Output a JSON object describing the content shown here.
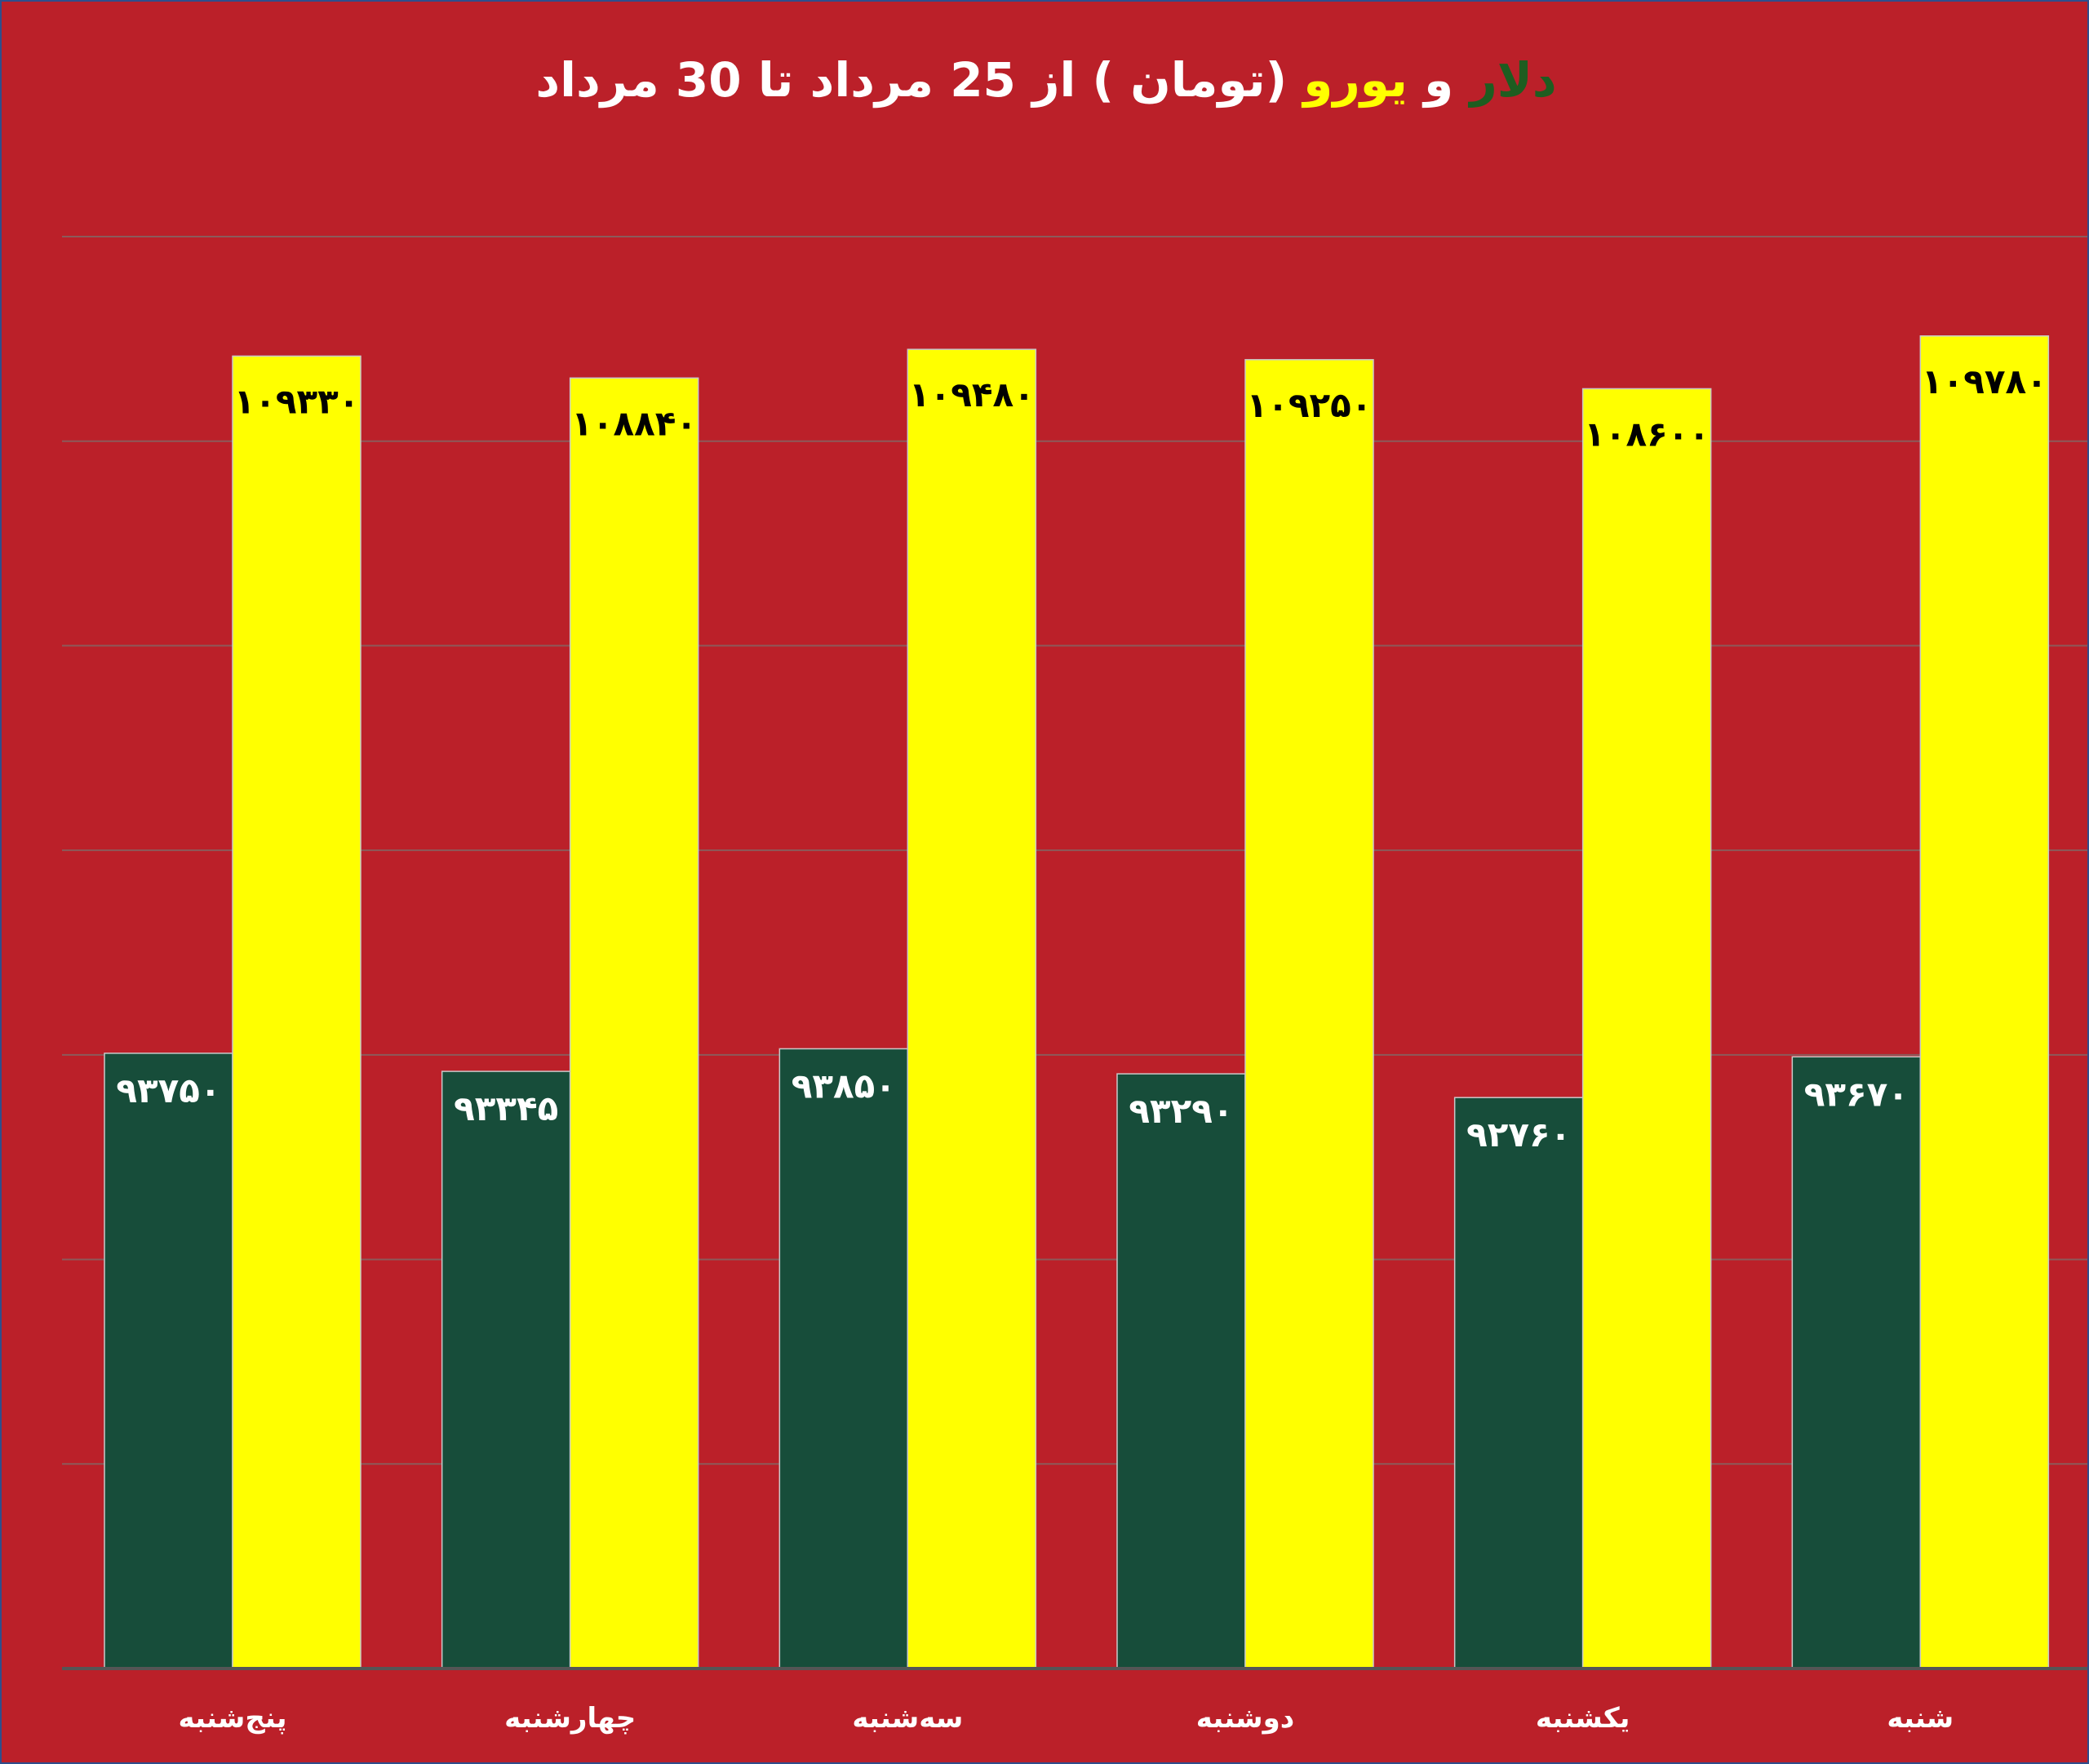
{
  "title": {
    "dollar": "دلار",
    "and": " و ",
    "euro": "یورو",
    "rest": " (تومان ) از 25 مرداد تا 30 مرداد"
  },
  "colors": {
    "background": "#bb2029",
    "dollar": "#174d3a",
    "euro": "#ffff00",
    "gridline": "#8c5a5a",
    "axis": "#555555"
  },
  "chart_data": {
    "type": "bar",
    "categories": [
      "پنج‌شنبه",
      "چهارشنبه",
      "سه‌شنبه",
      "دوشنبه",
      "یکشنبه",
      "شنبه"
    ],
    "series": [
      {
        "name": "دلار",
        "color": "#174d3a",
        "values": [
          93750,
          93345,
          93850,
          93290,
          92760,
          93670
        ],
        "labels": [
          "۹۳۷۵۰",
          "۹۳۳۴۵",
          "۹۳۸۵۰",
          "۹۳۲۹۰",
          "۹۲۷۶۰",
          "۹۳۶۷۰"
        ]
      },
      {
        "name": "یورو",
        "color": "#ffff00",
        "values": [
          109330,
          108840,
          109480,
          109250,
          108600,
          109780
        ],
        "labels": [
          "۱۰۹۳۳۰",
          "۱۰۸۸۴۰",
          "۱۰۹۴۸۰",
          "۱۰۹۲۵۰",
          "۱۰۸۶۰۰",
          "۱۰۹۷۸۰"
        ]
      }
    ],
    "ylim": [
      80000,
      112000
    ],
    "grid": true,
    "legend": "none"
  }
}
